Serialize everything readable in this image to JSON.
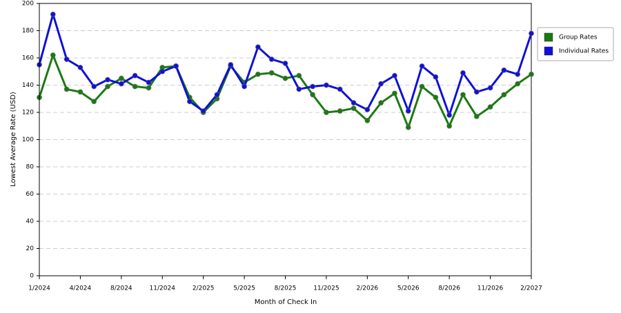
{
  "chart_data": {
    "type": "line",
    "x_label": "Month of Check In",
    "y_label": "Lowest Average Rate (USD)",
    "categories": [
      "1/2024",
      null,
      null,
      "4/2024",
      null,
      null,
      "8/2024",
      null,
      null,
      "11/2024",
      null,
      null,
      "2/2025",
      null,
      null,
      "5/2025",
      null,
      null,
      "8/2025",
      null,
      null,
      "11/2025",
      null,
      null,
      "2/2026",
      null,
      null,
      "5/2026",
      null,
      null,
      "8/2026",
      null,
      null,
      "11/2026",
      null,
      null,
      "2/2027"
    ],
    "series": [
      {
        "name": "Group Rates",
        "color": "#1a7a12",
        "values": [
          131,
          162,
          137,
          135,
          128,
          139,
          145,
          139,
          138,
          153,
          154,
          131,
          120,
          130,
          154,
          142,
          148,
          149,
          145,
          147,
          133,
          120,
          121,
          123,
          114,
          127,
          134,
          109,
          139,
          131,
          110,
          133,
          117,
          124,
          133,
          141,
          148
        ]
      },
      {
        "name": "Individual Rates",
        "color": "#1010d8",
        "values": [
          155,
          192,
          159,
          153,
          139,
          144,
          141,
          147,
          142,
          150,
          154,
          128,
          121,
          133,
          155,
          139,
          168,
          159,
          156,
          137,
          139,
          140,
          137,
          127,
          122,
          141,
          147,
          121,
          154,
          146,
          118,
          149,
          135,
          138,
          151,
          148,
          178
        ]
      }
    ],
    "ylim": [
      0,
      200
    ],
    "yticks": [
      0,
      20,
      40,
      60,
      80,
      100,
      120,
      140,
      160,
      180,
      200
    ],
    "grid": true,
    "legend": "right"
  }
}
